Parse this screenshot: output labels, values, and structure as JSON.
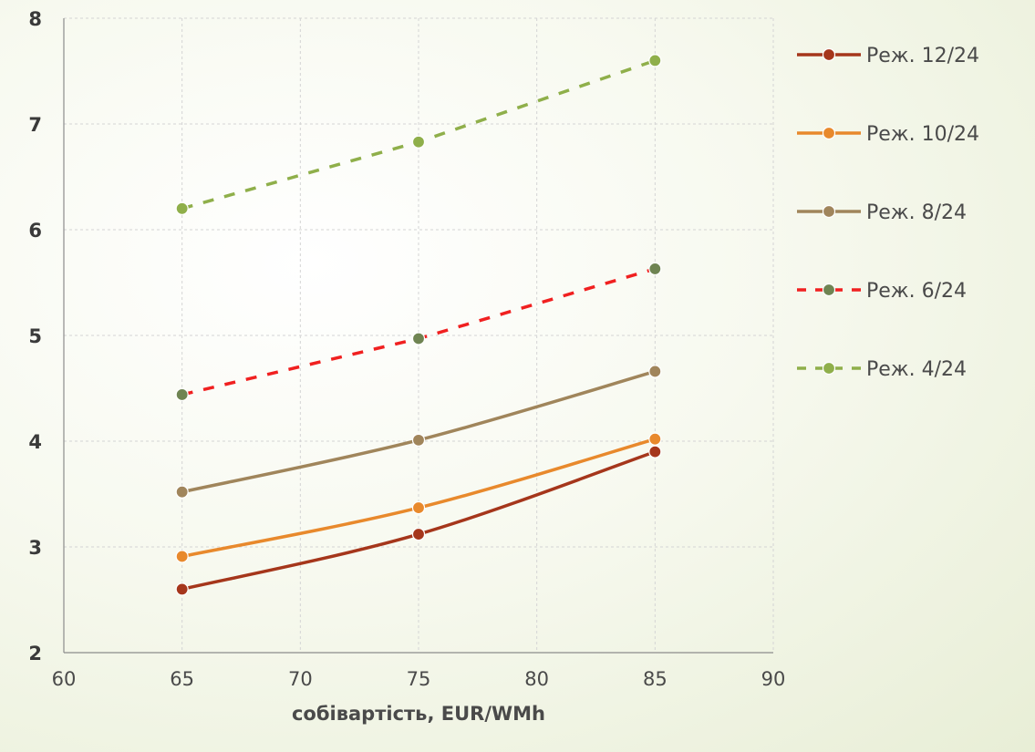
{
  "chart_data": {
    "type": "line",
    "title": "",
    "xlabel": "собівартість, EUR/WMh",
    "ylabel": "",
    "xlim": [
      60,
      90
    ],
    "ylim": [
      2,
      8
    ],
    "xticks": [
      60,
      65,
      70,
      75,
      80,
      85,
      90
    ],
    "yticks": [
      2,
      3,
      4,
      5,
      6,
      7,
      8
    ],
    "grid": "dashed light gray",
    "legend_position": "right",
    "x": [
      65,
      75,
      85
    ],
    "series": [
      {
        "name": "Реж. 12/24",
        "values": [
          2.6,
          3.12,
          3.9
        ],
        "line_color": "#A5361B",
        "marker_color": "#A5361B",
        "dash": "solid",
        "smooth": true
      },
      {
        "name": "Реж. 10/24",
        "values": [
          2.91,
          3.37,
          4.02
        ],
        "line_color": "#E8892C",
        "marker_color": "#E8892C",
        "dash": "solid",
        "smooth": true
      },
      {
        "name": "Реж. 8/24",
        "values": [
          3.52,
          4.01,
          4.66
        ],
        "line_color": "#A0855B",
        "marker_color": "#A0855B",
        "dash": "solid",
        "smooth": true
      },
      {
        "name": "Реж. 6/24",
        "values": [
          4.44,
          4.97,
          5.63
        ],
        "line_color": "#F02020",
        "marker_color": "#6F8452",
        "dash": "dashed",
        "smooth": false
      },
      {
        "name": "Реж. 4/24",
        "values": [
          6.2,
          6.83,
          7.6
        ],
        "line_color": "#8FAF4A",
        "marker_color": "#8FAF4A",
        "dash": "dashed",
        "smooth": false
      }
    ]
  }
}
